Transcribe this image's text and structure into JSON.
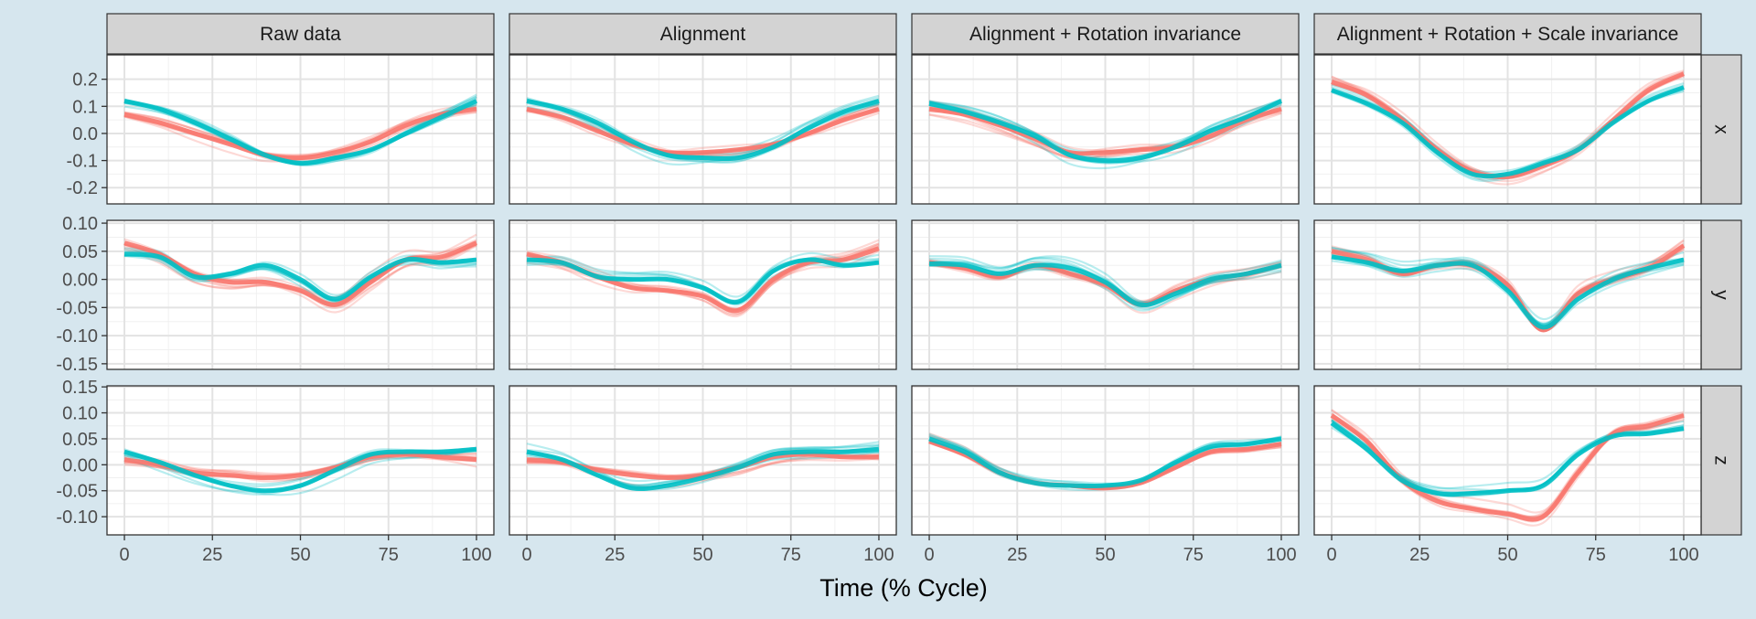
{
  "chart_data": {
    "type": "line",
    "xlabel": "Time (% Cycle)",
    "ylabel": "",
    "x_ticks": [
      0,
      25,
      50,
      75,
      100
    ],
    "xlim": [
      0,
      100
    ],
    "columns": [
      "Raw data",
      "Alignment",
      "Alignment + Rotation invariance",
      "Alignment + Rotation + Scale invariance"
    ],
    "rows": [
      {
        "label": "x",
        "ylim": [
          -0.26,
          0.29
        ],
        "ticks": [
          0.2,
          0.1,
          0.0,
          -0.1,
          -0.2
        ],
        "tick_labels": [
          "0.2",
          "0.1",
          "0.0",
          "-0.1",
          "-0.2"
        ]
      },
      {
        "label": "y",
        "ylim": [
          -0.16,
          0.105
        ],
        "ticks": [
          0.1,
          0.05,
          0.0,
          -0.05,
          -0.1,
          -0.15
        ],
        "tick_labels": [
          "0.10",
          "0.05",
          "0.00",
          "-0.05",
          "-0.10",
          "-0.15"
        ]
      },
      {
        "label": "z",
        "ylim": [
          -0.135,
          0.152
        ],
        "ticks": [
          0.15,
          0.1,
          0.05,
          0.0,
          -0.05,
          -0.1
        ],
        "tick_labels": [
          "0.15",
          "0.10",
          "0.05",
          "0.00",
          "-0.05",
          "-0.10"
        ]
      }
    ],
    "series_colors": [
      "#f8766d",
      "#00bfc4"
    ],
    "x": [
      0,
      10,
      20,
      30,
      40,
      50,
      60,
      70,
      80,
      90,
      100
    ],
    "panels": [
      [
        {
          "red": [
            0.07,
            0.04,
            0.0,
            -0.04,
            -0.08,
            -0.09,
            -0.07,
            -0.03,
            0.03,
            0.07,
            0.09
          ],
          "blue": [
            0.12,
            0.09,
            0.04,
            -0.02,
            -0.08,
            -0.11,
            -0.09,
            -0.06,
            0.0,
            0.06,
            0.12
          ]
        },
        {
          "red": [
            0.09,
            0.06,
            0.01,
            -0.04,
            -0.07,
            -0.07,
            -0.06,
            -0.04,
            0.0,
            0.05,
            0.09
          ],
          "blue": [
            0.12,
            0.09,
            0.04,
            -0.03,
            -0.08,
            -0.09,
            -0.09,
            -0.05,
            0.02,
            0.08,
            0.12
          ]
        },
        {
          "red": [
            0.09,
            0.07,
            0.03,
            -0.02,
            -0.07,
            -0.07,
            -0.06,
            -0.05,
            -0.01,
            0.05,
            0.09
          ],
          "blue": [
            0.11,
            0.08,
            0.04,
            -0.01,
            -0.08,
            -0.1,
            -0.09,
            -0.05,
            0.01,
            0.06,
            0.12
          ]
        },
        {
          "red": [
            0.19,
            0.14,
            0.05,
            -0.06,
            -0.14,
            -0.16,
            -0.12,
            -0.06,
            0.05,
            0.16,
            0.22
          ],
          "blue": [
            0.16,
            0.11,
            0.04,
            -0.07,
            -0.15,
            -0.15,
            -0.11,
            -0.06,
            0.04,
            0.12,
            0.17
          ]
        }
      ],
      [
        {
          "red": [
            0.065,
            0.045,
            0.01,
            -0.005,
            -0.005,
            -0.02,
            -0.045,
            -0.005,
            0.035,
            0.04,
            0.065
          ],
          "blue": [
            0.045,
            0.04,
            0.005,
            0.01,
            0.025,
            0.0,
            -0.035,
            0.005,
            0.035,
            0.03,
            0.035
          ]
        },
        {
          "red": [
            0.045,
            0.03,
            0.005,
            -0.015,
            -0.02,
            -0.03,
            -0.055,
            0.0,
            0.03,
            0.035,
            0.055
          ],
          "blue": [
            0.035,
            0.03,
            0.005,
            0.0,
            0.0,
            -0.015,
            -0.04,
            0.015,
            0.035,
            0.025,
            0.03
          ]
        },
        {
          "red": [
            0.03,
            0.02,
            0.005,
            0.025,
            0.01,
            -0.01,
            -0.045,
            -0.02,
            0.0,
            0.01,
            0.025
          ],
          "blue": [
            0.028,
            0.025,
            0.01,
            0.025,
            0.02,
            -0.005,
            -0.045,
            -0.025,
            0.0,
            0.01,
            0.025
          ]
        },
        {
          "red": [
            0.05,
            0.035,
            0.01,
            0.025,
            0.025,
            -0.01,
            -0.09,
            -0.025,
            0.0,
            0.02,
            0.06
          ],
          "blue": [
            0.04,
            0.03,
            0.015,
            0.025,
            0.025,
            -0.02,
            -0.085,
            -0.035,
            0.0,
            0.02,
            0.035
          ]
        }
      ],
      [
        {
          "red": [
            0.01,
            0.0,
            -0.015,
            -0.02,
            -0.025,
            -0.02,
            -0.005,
            0.015,
            0.02,
            0.015,
            0.01
          ],
          "blue": [
            0.025,
            0.005,
            -0.02,
            -0.04,
            -0.05,
            -0.04,
            -0.01,
            0.02,
            0.025,
            0.025,
            0.03
          ]
        },
        {
          "red": [
            0.01,
            0.005,
            -0.01,
            -0.02,
            -0.025,
            -0.02,
            -0.005,
            0.015,
            0.02,
            0.015,
            0.015
          ],
          "blue": [
            0.025,
            0.01,
            -0.02,
            -0.045,
            -0.04,
            -0.025,
            -0.005,
            0.02,
            0.025,
            0.025,
            0.03
          ]
        },
        {
          "red": [
            0.045,
            0.02,
            -0.015,
            -0.035,
            -0.04,
            -0.045,
            -0.035,
            -0.005,
            0.025,
            0.03,
            0.04
          ],
          "blue": [
            0.05,
            0.025,
            -0.015,
            -0.035,
            -0.04,
            -0.04,
            -0.03,
            0.005,
            0.035,
            0.04,
            0.05
          ]
        },
        {
          "red": [
            0.095,
            0.045,
            -0.03,
            -0.07,
            -0.085,
            -0.095,
            -0.1,
            -0.015,
            0.06,
            0.075,
            0.095
          ],
          "blue": [
            0.08,
            0.03,
            -0.03,
            -0.055,
            -0.055,
            -0.05,
            -0.04,
            0.02,
            0.055,
            0.06,
            0.07
          ]
        }
      ]
    ]
  }
}
